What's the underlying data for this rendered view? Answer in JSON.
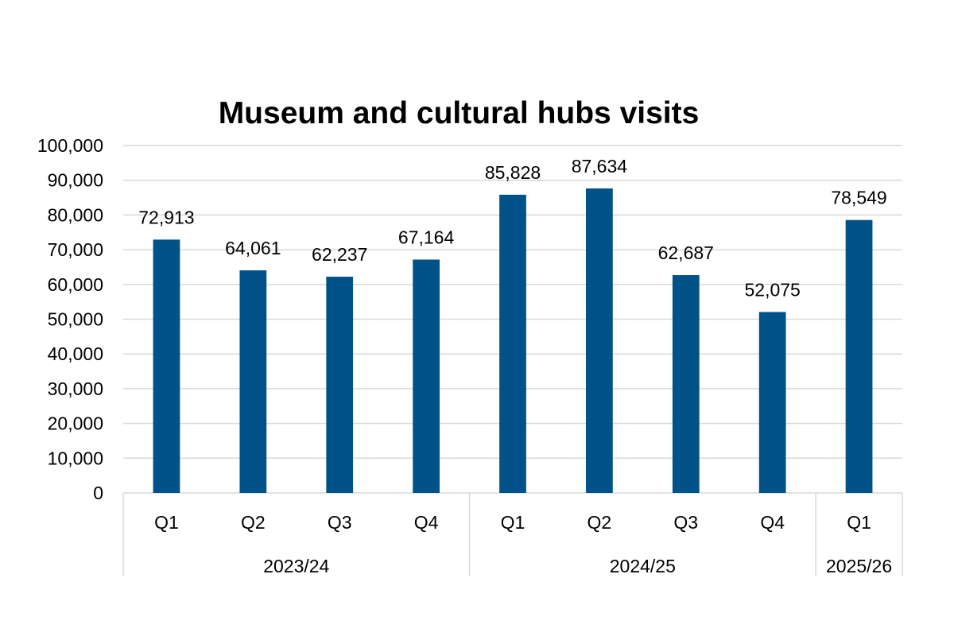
{
  "chart_data": {
    "type": "bar",
    "title": "Museum and cultural hubs visits",
    "xlabel": "",
    "ylabel": "",
    "ylim": [
      0,
      100000
    ],
    "ytick_step": 10000,
    "ytick_labels": [
      "0",
      "10,000",
      "20,000",
      "30,000",
      "40,000",
      "50,000",
      "60,000",
      "70,000",
      "80,000",
      "90,000",
      "100,000"
    ],
    "grid": true,
    "legend": "none",
    "bar_color": "#005288",
    "gridline_color": "#d9d9d9",
    "groups": [
      {
        "label": "2023/24",
        "categories": [
          "Q1",
          "Q2",
          "Q3",
          "Q4"
        ]
      },
      {
        "label": "2024/25",
        "categories": [
          "Q1",
          "Q2",
          "Q3",
          "Q4"
        ]
      },
      {
        "label": "2025/26",
        "categories": [
          "Q1"
        ]
      }
    ],
    "values": [
      72913,
      64061,
      62237,
      67164,
      85828,
      87634,
      62687,
      52075,
      78549
    ],
    "data_labels": [
      "72,913",
      "64,061",
      "62,237",
      "67,164",
      "85,828",
      "87,634",
      "62,687",
      "52,075",
      "78,549"
    ]
  }
}
